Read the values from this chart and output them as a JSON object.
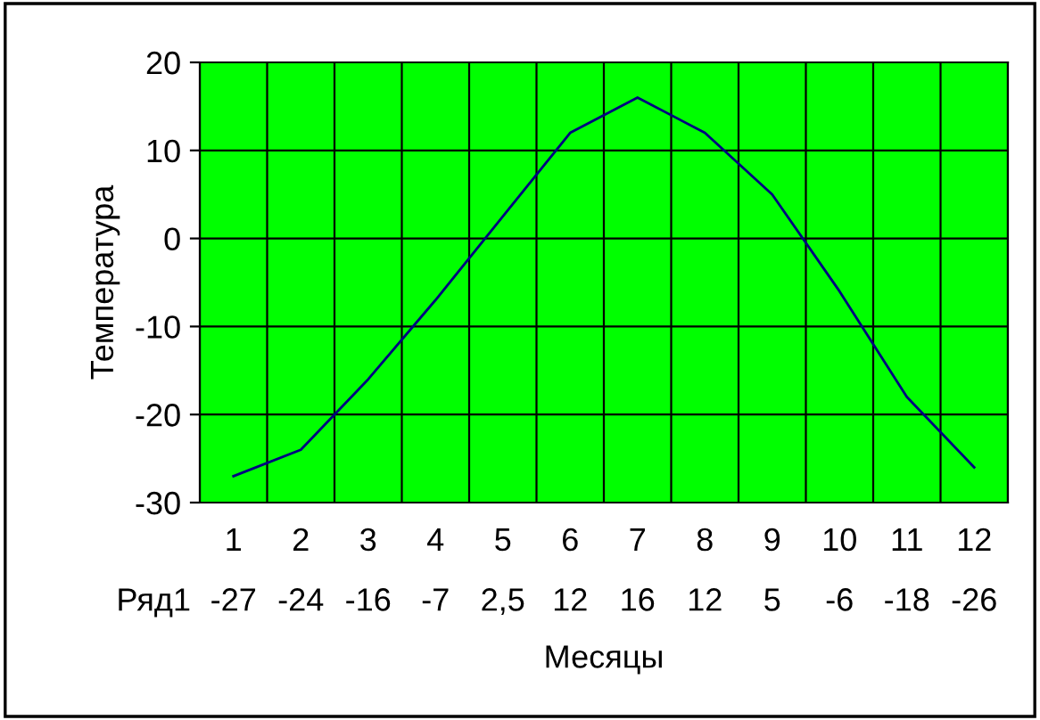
{
  "chart_data": {
    "type": "line",
    "xlabel": "Месяцы",
    "ylabel": "Температура",
    "categories": [
      "1",
      "2",
      "3",
      "4",
      "5",
      "6",
      "7",
      "8",
      "9",
      "10",
      "11",
      "12"
    ],
    "series": [
      {
        "name": "Ряд1",
        "color": "#000080",
        "values": [
          -27,
          -24,
          -16,
          -7,
          2.5,
          12,
          16,
          12,
          5,
          -6,
          -18,
          -26
        ],
        "value_labels": [
          "-27",
          "-24",
          "-16",
          "-7",
          "2,5",
          "12",
          "16",
          "12",
          "5",
          "-6",
          "-18",
          "-26"
        ]
      }
    ],
    "ylim": [
      -30,
      20
    ],
    "yticks": [
      -30,
      -20,
      -10,
      0,
      10,
      20
    ],
    "grid": true,
    "legend": false,
    "marker": "none",
    "line_style": "solid"
  }
}
